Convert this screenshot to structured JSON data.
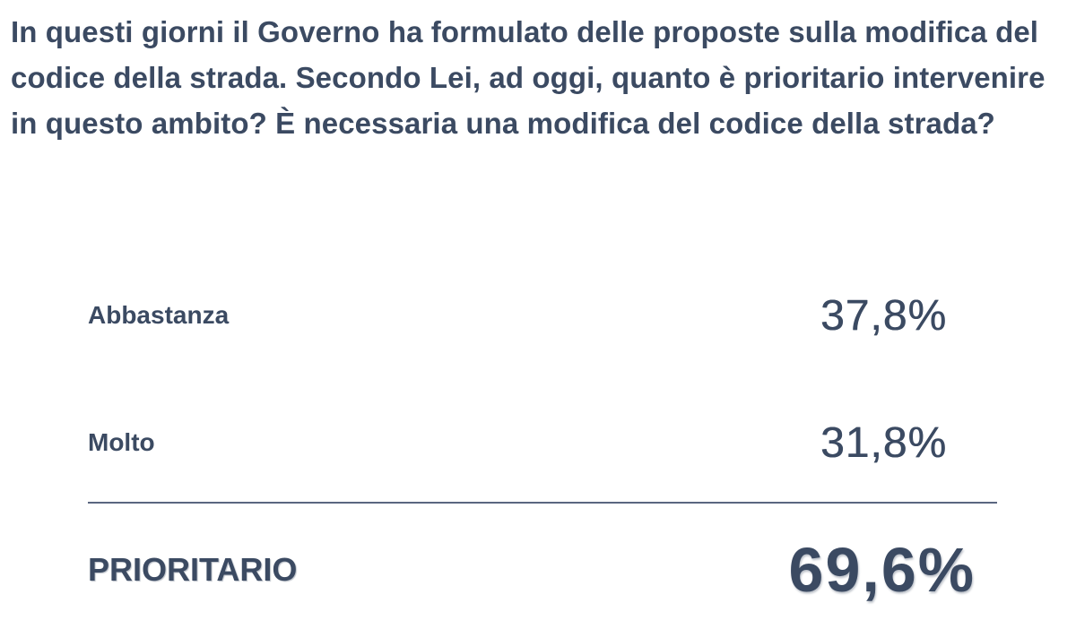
{
  "question": "In questi giorni il Governo ha formulato delle proposte sulla modifica del codice della strada. Secondo Lei, ad oggi, quanto è prioritario intervenire in questo ambito? È necessaria una modifica del codice della strada?",
  "rows": [
    {
      "label": "Abbastanza",
      "value": "37,8%"
    },
    {
      "label": "Molto",
      "value": "31,8%"
    }
  ],
  "total": {
    "label": "PRIORITARIO",
    "value": "69,6%"
  },
  "colors": {
    "text": "#3b4a62",
    "divider": "#5a6780",
    "background": "#ffffff"
  }
}
